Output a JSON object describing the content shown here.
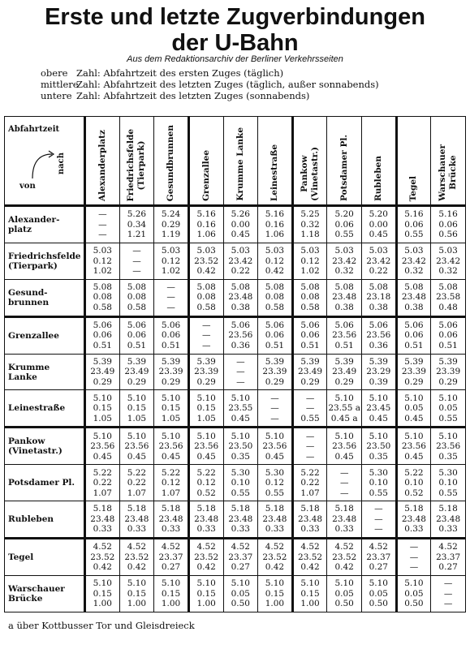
{
  "title_line1": "Erste und letzte Zugverbindungen",
  "title_line2": "der U-Bahn",
  "subtitle": "Aus dem Redaktionsarchiv der Berliner Verkehrsseiten",
  "legend": [
    {
      "key": "obere",
      "text": "Zahl: Abfahrtzeit des ersten Zuges (täglich)"
    },
    {
      "key": "mittlere",
      "text": "Zahl: Abfahrtzeit des letzten Zuges (täglich, außer sonnabends)"
    },
    {
      "key": "untere",
      "text": "Zahl: Abfahrtzeit des letzten Zuges (sonnabends)"
    }
  ],
  "corner": {
    "top": "Abfahrtzeit",
    "nach": "nach",
    "von": "von"
  },
  "columns": [
    "Alexanderplatz",
    "Friedrichsfelde\n(Tierpark)",
    "Gesundbrunnen",
    "Grenzallee",
    "Krumme Lanke",
    "Leinestraße",
    "Pankow\n(Vinetastr.)",
    "Potsdamer Pl.",
    "Rubleben",
    "Tegel",
    "Warschauer\nBrücke"
  ],
  "rows": [
    {
      "name": "Alexander-\nplatz",
      "cells": [
        [
          "—",
          "—",
          "—"
        ],
        [
          "5.26",
          "0.34",
          "1.21"
        ],
        [
          "5.24",
          "0.29",
          "1.19"
        ],
        [
          "5.16",
          "0.16",
          "1.06"
        ],
        [
          "5.26",
          "0.00",
          "0.45"
        ],
        [
          "5.16",
          "0.16",
          "1.06"
        ],
        [
          "5.25",
          "0.32",
          "1.18"
        ],
        [
          "5.20",
          "0.06",
          "0.55"
        ],
        [
          "5.20",
          "0.00",
          "0.45"
        ],
        [
          "5.16",
          "0.06",
          "0.55"
        ],
        [
          "5.16",
          "0.06",
          "0.56"
        ]
      ]
    },
    {
      "name": "Friedrichsfelde\n(Tierpark)",
      "cells": [
        [
          "5.03",
          "0.12",
          "1.02"
        ],
        [
          "—",
          "—",
          "—"
        ],
        [
          "5.03",
          "0.12",
          "1.02"
        ],
        [
          "5.03",
          "23.52",
          "0.42"
        ],
        [
          "5.03",
          "23.42",
          "0.22"
        ],
        [
          "5.03",
          "0.12",
          "0.42"
        ],
        [
          "5.03",
          "0.12",
          "1.02"
        ],
        [
          "5.03",
          "23.42",
          "0.32"
        ],
        [
          "5.03",
          "23.42",
          "0.22"
        ],
        [
          "5.03",
          "23.42",
          "0.32"
        ],
        [
          "5.03",
          "23.42",
          "0.32"
        ]
      ]
    },
    {
      "name": "Gesund-\nbrunnen",
      "cells": [
        [
          "5.08",
          "0.08",
          "0.58"
        ],
        [
          "5.08",
          "0.08",
          "0.58"
        ],
        [
          "—",
          "—",
          "—"
        ],
        [
          "5.08",
          "0.08",
          "0.58"
        ],
        [
          "5.08",
          "23.48",
          "0.38"
        ],
        [
          "5.08",
          "0.08",
          "0.58"
        ],
        [
          "5.08",
          "0.08",
          "0.58"
        ],
        [
          "5.08",
          "23.48",
          "0.38"
        ],
        [
          "5.08",
          "23.18",
          "0.38"
        ],
        [
          "5.08",
          "23.48",
          "0.38"
        ],
        [
          "5.08",
          "23.58",
          "0.48"
        ]
      ]
    },
    {
      "name": "Grenzallee",
      "cells": [
        [
          "5.06",
          "0.06",
          "0.51"
        ],
        [
          "5.06",
          "0.06",
          "0.51"
        ],
        [
          "5.06",
          "0.06",
          "0.51"
        ],
        [
          "—",
          "—",
          "—"
        ],
        [
          "5.06",
          "23.56",
          "0.36"
        ],
        [
          "5.06",
          "0.06",
          "0.51"
        ],
        [
          "5.06",
          "0.06",
          "0.51"
        ],
        [
          "5.06",
          "23.56",
          "0.51"
        ],
        [
          "5.06",
          "23.56",
          "0.36"
        ],
        [
          "5.06",
          "0.06",
          "0.51"
        ],
        [
          "5.06",
          "0.06",
          "0.51"
        ]
      ]
    },
    {
      "name": "Krumme\nLanke",
      "cells": [
        [
          "5.39",
          "23.49",
          "0.29"
        ],
        [
          "5.39",
          "23.49",
          "0.29"
        ],
        [
          "5.39",
          "23.39",
          "0.29"
        ],
        [
          "5.39",
          "23.39",
          "0.29"
        ],
        [
          "—",
          "—",
          "—"
        ],
        [
          "5.39",
          "23.39",
          "0.29"
        ],
        [
          "5.39",
          "23.49",
          "0.29"
        ],
        [
          "5.39",
          "23.49",
          "0.29"
        ],
        [
          "5.39",
          "23.29",
          "0.39"
        ],
        [
          "5.39",
          "23.39",
          "0.29"
        ],
        [
          "5.39",
          "23.39",
          "0.29"
        ]
      ]
    },
    {
      "name": "Leinestraße",
      "cells": [
        [
          "5.10",
          "0.15",
          "1.05"
        ],
        [
          "5.10",
          "0.15",
          "1.05"
        ],
        [
          "5.10",
          "0.15",
          "1.05"
        ],
        [
          "5.10",
          "0.15",
          "1.05"
        ],
        [
          "5.10",
          "23.55",
          "0.45"
        ],
        [
          "—",
          "—",
          "—"
        ],
        [
          "—",
          "—",
          "0.55"
        ],
        [
          "5.10",
          "23.55 a",
          "0.45 a"
        ],
        [
          "5.10",
          "23.45",
          "0.45"
        ],
        [
          "5.10",
          "0.05",
          "0.45"
        ],
        [
          "5.10",
          "0.05",
          "0.55"
        ]
      ]
    },
    {
      "name": "Pankow\n(Vinetastr.)",
      "cells": [
        [
          "5.10",
          "23.56",
          "0.45"
        ],
        [
          "5.10",
          "23.56",
          "0.45"
        ],
        [
          "5.10",
          "23.56",
          "0.45"
        ],
        [
          "5.10",
          "23.56",
          "0.45"
        ],
        [
          "5.10",
          "23.50",
          "0.35"
        ],
        [
          "5.10",
          "23.56",
          "0.45"
        ],
        [
          "—",
          "—",
          "—"
        ],
        [
          "5.10",
          "23.56",
          "0.45"
        ],
        [
          "5.10",
          "23.50",
          "0.35"
        ],
        [
          "5.10",
          "23.56",
          "0.45"
        ],
        [
          "5.10",
          "23.56",
          "0.35"
        ]
      ]
    },
    {
      "name": "Potsdamer Pl.",
      "cells": [
        [
          "5.22",
          "0.22",
          "1.07"
        ],
        [
          "5.22",
          "0.22",
          "1.07"
        ],
        [
          "5.22",
          "0.12",
          "1.07"
        ],
        [
          "5.22",
          "0.12",
          "0.52"
        ],
        [
          "5.30",
          "0.10",
          "0.55"
        ],
        [
          "5.30",
          "0.12",
          "0.55"
        ],
        [
          "5.22",
          "0.22",
          "1.07"
        ],
        [
          "—",
          "—",
          "—"
        ],
        [
          "5.30",
          "0.10",
          "0.55"
        ],
        [
          "5.22",
          "0.10",
          "0.52"
        ],
        [
          "5.30",
          "0.10",
          "0.55"
        ]
      ]
    },
    {
      "name": "Rubleben",
      "cells": [
        [
          "5.18",
          "23.48",
          "0.33"
        ],
        [
          "5.18",
          "23.48",
          "0.33"
        ],
        [
          "5.18",
          "23.48",
          "0.33"
        ],
        [
          "5.18",
          "23.48",
          "0.33"
        ],
        [
          "5.18",
          "23.48",
          "0.33"
        ],
        [
          "5.18",
          "23.48",
          "0.33"
        ],
        [
          "5.18",
          "23.48",
          "0.33"
        ],
        [
          "5.18",
          "23.48",
          "0.33"
        ],
        [
          "—",
          "—",
          "—"
        ],
        [
          "5.18",
          "23.48",
          "0.33"
        ],
        [
          "5.18",
          "23.48",
          "0.33"
        ]
      ]
    },
    {
      "name": "Tegel",
      "cells": [
        [
          "4.52",
          "23.52",
          "0.42"
        ],
        [
          "4.52",
          "23.52",
          "0.42"
        ],
        [
          "4.52",
          "23.37",
          "0.27"
        ],
        [
          "4.52",
          "23.52",
          "0.42"
        ],
        [
          "4.52",
          "23.37",
          "0.27"
        ],
        [
          "4.52",
          "23.52",
          "0.42"
        ],
        [
          "4.52",
          "23.52",
          "0.42"
        ],
        [
          "4.52",
          "23.52",
          "0.42"
        ],
        [
          "4.52",
          "23.37",
          "0.27"
        ],
        [
          "—",
          "—",
          "—"
        ],
        [
          "4.52",
          "23.37",
          "0.27"
        ]
      ]
    },
    {
      "name": "Warschauer\nBrücke",
      "cells": [
        [
          "5.10",
          "0.15",
          "1.00"
        ],
        [
          "5.10",
          "0.15",
          "1.00"
        ],
        [
          "5.10",
          "0.15",
          "1.00"
        ],
        [
          "5.10",
          "0.15",
          "1.00"
        ],
        [
          "5.10",
          "0.05",
          "0.50"
        ],
        [
          "5.10",
          "0.15",
          "1.00"
        ],
        [
          "5.10",
          "0.15",
          "1.00"
        ],
        [
          "5.10",
          "0.05",
          "0.50"
        ],
        [
          "5.10",
          "0.05",
          "0.50"
        ],
        [
          "5.10",
          "0.05",
          "0.50"
        ],
        [
          "—",
          "—",
          "—"
        ]
      ]
    }
  ],
  "footnote": "a  über Kottbusser Tor und Gleisdreieck"
}
